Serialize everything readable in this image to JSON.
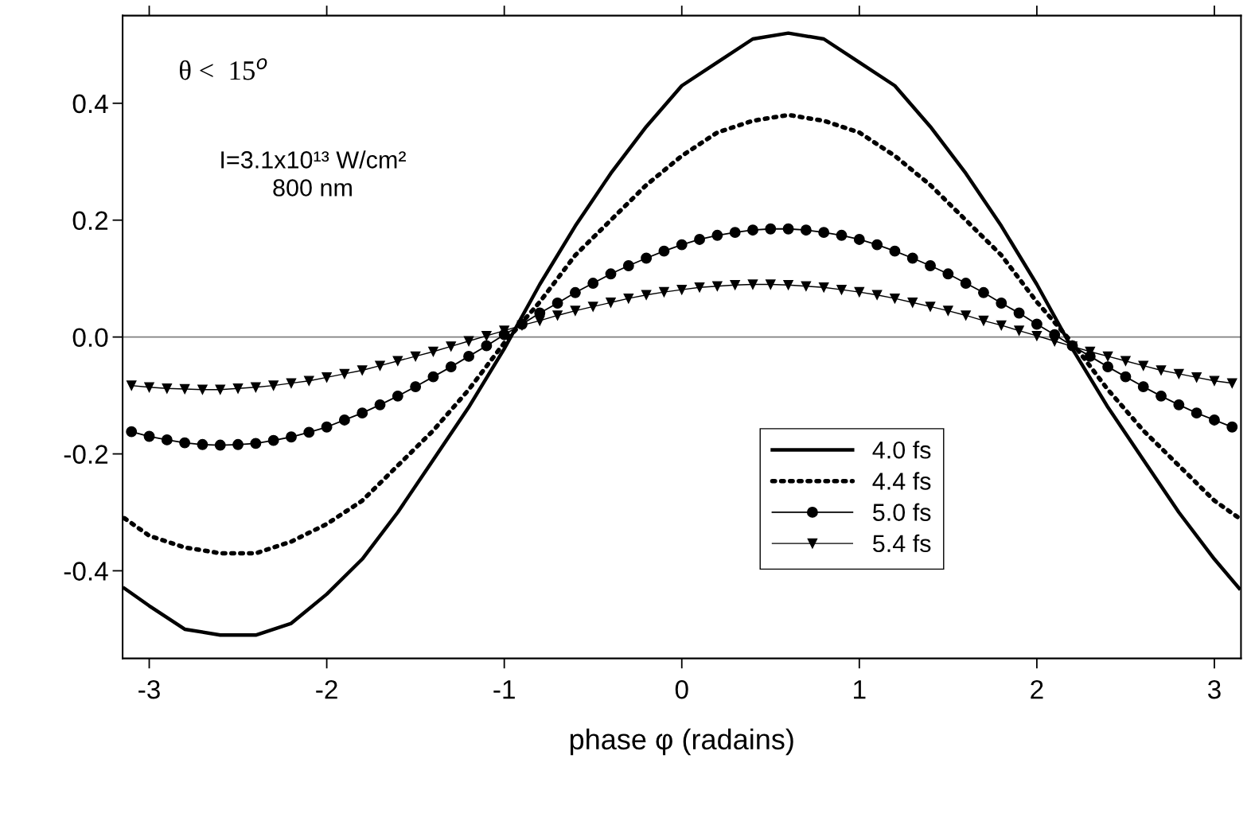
{
  "chart_data": {
    "type": "line",
    "xlabel": "phase φ (radains)",
    "xlim": [
      -3.15,
      3.15
    ],
    "ylim": [
      -0.55,
      0.55
    ],
    "xticks": [
      -3,
      -2,
      -1,
      0,
      1,
      2,
      3
    ],
    "yticks": [
      -0.4,
      -0.2,
      {
        "value": 0,
        "label": "0.0"
      },
      0.2,
      0.4
    ],
    "grid": false,
    "legend": "bottom right",
    "ref_lines": [
      {
        "axis": "y",
        "value": 0,
        "color": "#808080"
      }
    ],
    "annotations": [
      "θ <  15$^{o}$",
      "I=3.1x10¹³ W/cm²\n800 nm"
    ],
    "series": [
      {
        "name": "4.0 fs",
        "color": "#000000",
        "line_style": "solid",
        "marker": "none",
        "x": [
          -3.14,
          -3.0,
          -2.8,
          -2.6,
          -2.4,
          -2.2,
          -2.0,
          -1.8,
          -1.6,
          -1.4,
          -1.2,
          -1.0,
          -0.8,
          -0.6,
          -0.4,
          -0.2,
          0.0,
          0.2,
          0.4,
          0.6,
          0.8,
          1.0,
          1.2,
          1.4,
          1.6,
          1.8,
          2.0,
          2.2,
          2.4,
          2.6,
          2.8,
          3.0,
          3.14
        ],
        "values": [
          -0.43,
          -0.46,
          -0.5,
          -0.51,
          -0.51,
          -0.49,
          -0.44,
          -0.38,
          -0.3,
          -0.21,
          -0.12,
          -0.02,
          0.09,
          0.19,
          0.28,
          0.36,
          0.43,
          0.47,
          0.51,
          0.52,
          0.51,
          0.47,
          0.43,
          0.36,
          0.28,
          0.19,
          0.09,
          -0.02,
          -0.12,
          -0.21,
          -0.3,
          -0.38,
          -0.43
        ]
      },
      {
        "name": "4.4 fs",
        "color": "#000000",
        "line_style": "dotted",
        "marker": "none",
        "x": [
          -3.14,
          -3.0,
          -2.8,
          -2.6,
          -2.4,
          -2.2,
          -2.0,
          -1.8,
          -1.6,
          -1.4,
          -1.2,
          -1.0,
          -0.8,
          -0.6,
          -0.4,
          -0.2,
          0.0,
          0.2,
          0.4,
          0.6,
          0.8,
          1.0,
          1.2,
          1.4,
          1.6,
          1.8,
          2.0,
          2.2,
          2.4,
          2.6,
          2.8,
          3.0,
          3.14
        ],
        "values": [
          -0.31,
          -0.34,
          -0.36,
          -0.37,
          -0.37,
          -0.35,
          -0.32,
          -0.28,
          -0.22,
          -0.16,
          -0.09,
          -0.01,
          0.06,
          0.14,
          0.2,
          0.26,
          0.31,
          0.35,
          0.37,
          0.38,
          0.37,
          0.35,
          0.31,
          0.26,
          0.2,
          0.14,
          0.06,
          -0.01,
          -0.09,
          -0.16,
          -0.22,
          -0.28,
          -0.31
        ]
      },
      {
        "name": "5.0 fs",
        "color": "#000000",
        "line_style": "solid",
        "marker": "circle",
        "x": [
          -3.1,
          -3.0,
          -2.9,
          -2.8,
          -2.7,
          -2.6,
          -2.5,
          -2.4,
          -2.3,
          -2.2,
          -2.1,
          -2.0,
          -1.9,
          -1.8,
          -1.7,
          -1.6,
          -1.5,
          -1.4,
          -1.3,
          -1.2,
          -1.1,
          -1.0,
          -0.9,
          -0.8,
          -0.7,
          -0.6,
          -0.5,
          -0.4,
          -0.3,
          -0.2,
          -0.1,
          0.0,
          0.1,
          0.2,
          0.3,
          0.4,
          0.5,
          0.6,
          0.7,
          0.8,
          0.9,
          1.0,
          1.1,
          1.2,
          1.3,
          1.4,
          1.5,
          1.6,
          1.7,
          1.8,
          1.9,
          2.0,
          2.1,
          2.2,
          2.3,
          2.4,
          2.5,
          2.6,
          2.7,
          2.8,
          2.9,
          3.0,
          3.1
        ],
        "values": [
          -0.162,
          -0.17,
          -0.176,
          -0.181,
          -0.184,
          -0.185,
          -0.184,
          -0.182,
          -0.177,
          -0.171,
          -0.163,
          -0.154,
          -0.142,
          -0.13,
          -0.116,
          -0.101,
          -0.085,
          -0.068,
          -0.051,
          -0.033,
          -0.015,
          0.004,
          0.022,
          0.041,
          0.058,
          0.076,
          0.092,
          0.108,
          0.122,
          0.135,
          0.147,
          0.158,
          0.167,
          0.174,
          0.179,
          0.183,
          0.185,
          0.185,
          0.183,
          0.179,
          0.174,
          0.167,
          0.158,
          0.147,
          0.135,
          0.122,
          0.108,
          0.092,
          0.076,
          0.058,
          0.041,
          0.022,
          0.004,
          -0.015,
          -0.033,
          -0.051,
          -0.068,
          -0.085,
          -0.101,
          -0.116,
          -0.13,
          -0.142,
          -0.154
        ]
      },
      {
        "name": "5.4 fs",
        "color": "#000000",
        "line_style": "solid",
        "marker": "triangle",
        "x": [
          -3.1,
          -3.0,
          -2.9,
          -2.8,
          -2.7,
          -2.6,
          -2.5,
          -2.4,
          -2.3,
          -2.2,
          -2.1,
          -2.0,
          -1.9,
          -1.8,
          -1.7,
          -1.6,
          -1.5,
          -1.4,
          -1.3,
          -1.2,
          -1.1,
          -1.0,
          -0.9,
          -0.8,
          -0.7,
          -0.6,
          -0.5,
          -0.4,
          -0.3,
          -0.2,
          -0.1,
          0.0,
          0.1,
          0.2,
          0.3,
          0.4,
          0.5,
          0.6,
          0.7,
          0.8,
          0.9,
          1.0,
          1.1,
          1.2,
          1.3,
          1.4,
          1.5,
          1.6,
          1.7,
          1.8,
          1.9,
          2.0,
          2.1,
          2.2,
          2.3,
          2.4,
          2.5,
          2.6,
          2.7,
          2.8,
          2.9,
          3.0,
          3.1
        ],
        "values": [
          -0.083,
          -0.086,
          -0.088,
          -0.089,
          -0.09,
          -0.09,
          -0.088,
          -0.086,
          -0.083,
          -0.079,
          -0.075,
          -0.069,
          -0.063,
          -0.057,
          -0.049,
          -0.041,
          -0.033,
          -0.025,
          -0.016,
          -0.007,
          0.002,
          0.011,
          0.02,
          0.028,
          0.037,
          0.045,
          0.052,
          0.059,
          0.066,
          0.072,
          0.077,
          0.081,
          0.085,
          0.087,
          0.089,
          0.09,
          0.09,
          0.089,
          0.087,
          0.085,
          0.081,
          0.077,
          0.072,
          0.066,
          0.059,
          0.052,
          0.045,
          0.037,
          0.028,
          0.02,
          0.011,
          0.002,
          -0.007,
          -0.016,
          -0.025,
          -0.033,
          -0.041,
          -0.049,
          -0.057,
          -0.063,
          -0.069,
          -0.075,
          -0.079
        ]
      }
    ]
  }
}
